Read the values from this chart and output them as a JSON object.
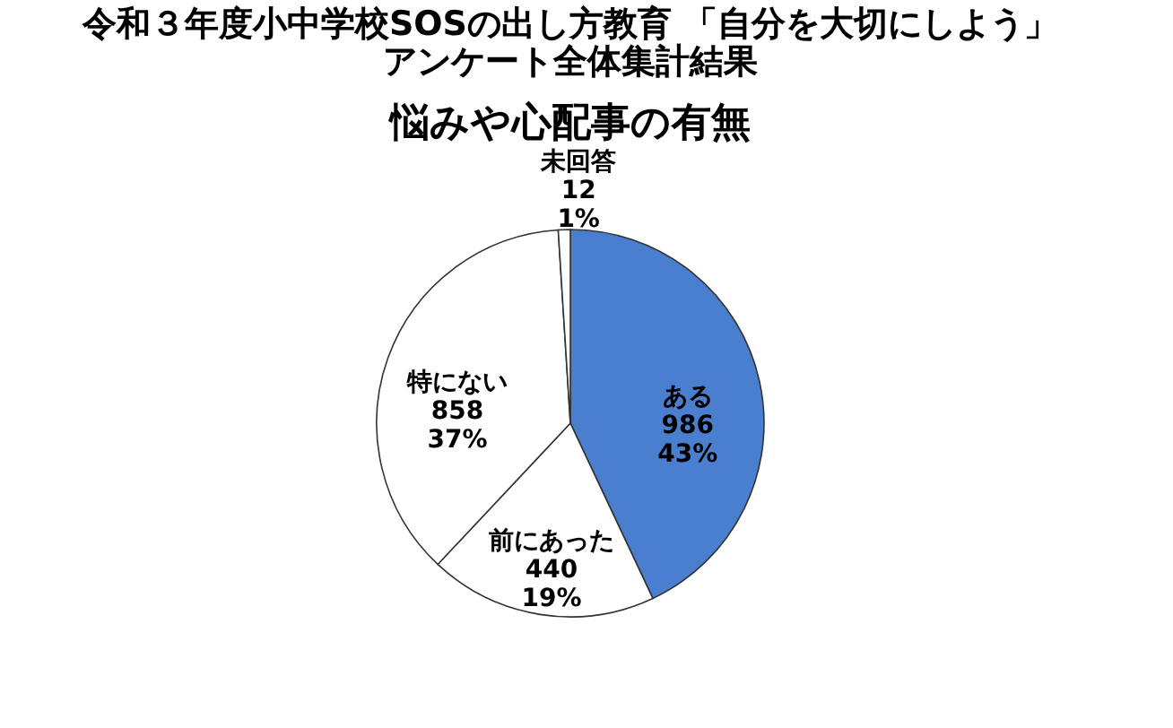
{
  "chart_data": {
    "type": "pie",
    "title": [
      "令和３年度小中学校SOSの出し方教育 「自分を大切にしよう」",
      "アンケート全体集計結果"
    ],
    "subtitle": "悩みや心配事の有無",
    "categories": [
      "ある",
      "前にあった",
      "特にない",
      "未回答"
    ],
    "values": [
      43,
      19,
      37,
      1
    ],
    "value_labels": [
      "986\n43%",
      "440\n19%",
      "858\n37%",
      "12\n1%"
    ],
    "colors": [
      "#4a7fd0",
      "#ffffff",
      "#ffffff",
      "#ffffff"
    ],
    "legend": false
  }
}
